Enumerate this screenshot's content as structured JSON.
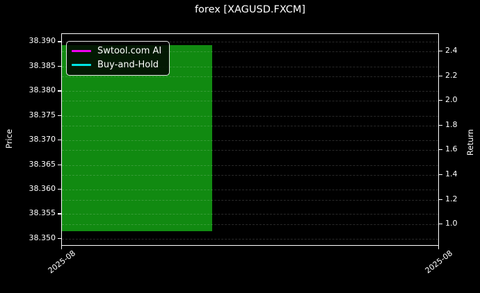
{
  "window": {
    "title": "forex [XAGUSD.FXCM]"
  },
  "legend": {
    "position": "upper-left",
    "items": [
      {
        "label": "Swtool.com AI",
        "color": "#f000f0"
      },
      {
        "label": "Buy-and-Hold",
        "color": "#00e5e5"
      }
    ]
  },
  "chart_data": {
    "type": "candlestick",
    "title": "forex [XAGUSD.FXCM]",
    "grid": {
      "on": true,
      "style": "dashed"
    },
    "colors": {
      "background": "#000000",
      "foreground": "#ffffff",
      "up_candle": "#118a11",
      "grid": "#2a2a2a"
    },
    "left_axis": {
      "label": "Price",
      "tick_labels": [
        "38.390",
        "38.385",
        "38.380",
        "38.375",
        "38.370",
        "38.365",
        "38.360",
        "38.355",
        "38.350"
      ],
      "range": [
        38.34872,
        38.39162
      ]
    },
    "right_axis": {
      "label": "Return",
      "tick_labels": [
        "2.4",
        "2.2",
        "2.0",
        "1.8",
        "1.6",
        "1.4",
        "1.2",
        "1.0"
      ],
      "range": [
        0.832,
        2.54
      ]
    },
    "x_axis": {
      "tick_labels": [
        "2025-08",
        "2025-08"
      ],
      "tick_fracs": [
        0,
        1
      ],
      "rotation_deg": -38
    },
    "candles": [
      {
        "x": "2025-08",
        "open": 38.3516,
        "close": 38.3893,
        "high": 38.3893,
        "low": 38.3516,
        "direction": "up",
        "x_left_frac": 0.0,
        "x_width_frac": 0.4
      }
    ],
    "series": [
      {
        "name": "Swtool.com AI",
        "color": "#f000f0",
        "axis": "right",
        "values": []
      },
      {
        "name": "Buy-and-Hold",
        "color": "#00e5e5",
        "axis": "right",
        "values": []
      }
    ]
  }
}
